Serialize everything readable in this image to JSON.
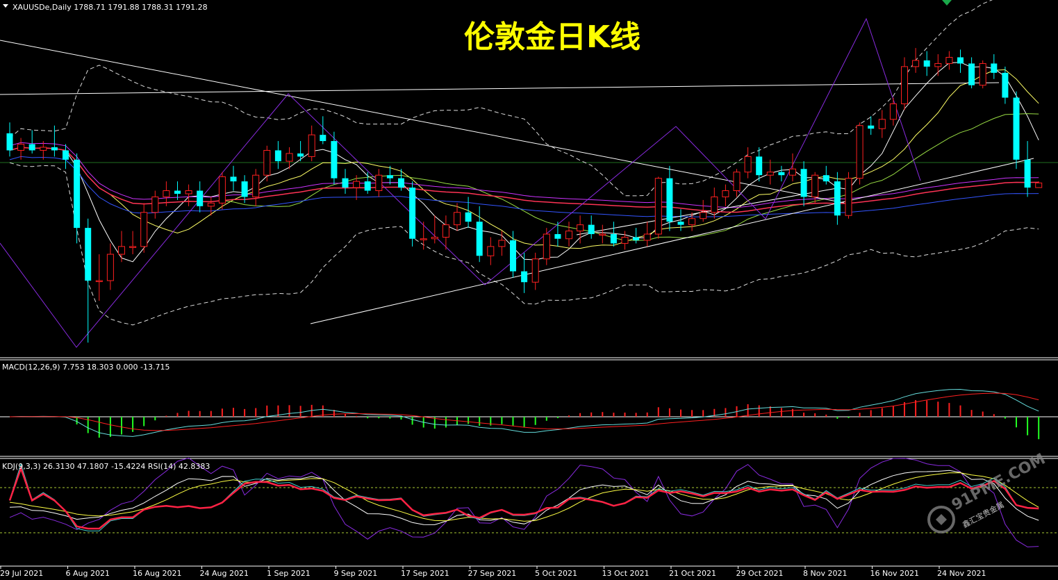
{
  "window": {
    "symbol_header": "XAUUSDe,Daily  1788.71 1791.88 1788.31 1791.28",
    "overlay_title": "伦敦金日K线"
  },
  "watermark": {
    "site": "91PME.COM",
    "tagline": "鑫汇宝贵金属"
  },
  "indicators": {
    "macd_header": "MACD(12,26,9) 7.753 18.303 0.000 -13.715",
    "kdj_header": "KDJ(9,3,3) 26.3130 47.1807 -15.4224  RSI(14) 42.8383"
  },
  "time_axis": {
    "labels": [
      "29 Jul 2021",
      "6 Aug 2021",
      "16 Aug 2021",
      "24 Aug 2021",
      "1 Sep 2021",
      "9 Sep 2021",
      "17 Sep 2021",
      "27 Sep 2021",
      "5 Oct 2021",
      "13 Oct 2021",
      "21 Oct 2021",
      "29 Oct 2021",
      "8 Nov 2021",
      "16 Nov 2021",
      "24 Nov 2021"
    ]
  },
  "colors": {
    "background": "#000000",
    "bull_candle": "#ff2020",
    "bear_candle": "#00ffff",
    "title": "#ffff00",
    "macd_positive": "#ff2020",
    "macd_negative": "#22ff22",
    "separator": "#ffffff"
  },
  "chart_data": {
    "type": "candlestick",
    "symbol": "XAUUSDe",
    "timeframe": "Daily",
    "candles": [
      {
        "o": 1823,
        "h": 1830,
        "l": 1808,
        "c": 1812
      },
      {
        "o": 1812,
        "h": 1820,
        "l": 1806,
        "c": 1816
      },
      {
        "o": 1816,
        "h": 1825,
        "l": 1810,
        "c": 1812
      },
      {
        "o": 1812,
        "h": 1818,
        "l": 1806,
        "c": 1814
      },
      {
        "o": 1814,
        "h": 1828,
        "l": 1808,
        "c": 1812
      },
      {
        "o": 1812,
        "h": 1816,
        "l": 1800,
        "c": 1806
      },
      {
        "o": 1806,
        "h": 1810,
        "l": 1752,
        "c": 1762
      },
      {
        "o": 1762,
        "h": 1768,
        "l": 1688,
        "c": 1728
      },
      {
        "o": 1728,
        "h": 1745,
        "l": 1715,
        "c": 1728
      },
      {
        "o": 1728,
        "h": 1752,
        "l": 1722,
        "c": 1745
      },
      {
        "o": 1745,
        "h": 1760,
        "l": 1740,
        "c": 1750
      },
      {
        "o": 1750,
        "h": 1760,
        "l": 1745,
        "c": 1750
      },
      {
        "o": 1750,
        "h": 1778,
        "l": 1746,
        "c": 1772
      },
      {
        "o": 1772,
        "h": 1786,
        "l": 1768,
        "c": 1782
      },
      {
        "o": 1782,
        "h": 1792,
        "l": 1776,
        "c": 1786
      },
      {
        "o": 1786,
        "h": 1792,
        "l": 1780,
        "c": 1784
      },
      {
        "o": 1784,
        "h": 1790,
        "l": 1776,
        "c": 1786
      },
      {
        "o": 1786,
        "h": 1792,
        "l": 1772,
        "c": 1776
      },
      {
        "o": 1776,
        "h": 1782,
        "l": 1770,
        "c": 1778
      },
      {
        "o": 1778,
        "h": 1798,
        "l": 1774,
        "c": 1795
      },
      {
        "o": 1795,
        "h": 1802,
        "l": 1786,
        "c": 1792
      },
      {
        "o": 1792,
        "h": 1796,
        "l": 1778,
        "c": 1782
      },
      {
        "o": 1782,
        "h": 1800,
        "l": 1776,
        "c": 1796
      },
      {
        "o": 1796,
        "h": 1815,
        "l": 1792,
        "c": 1812
      },
      {
        "o": 1812,
        "h": 1818,
        "l": 1800,
        "c": 1805
      },
      {
        "o": 1805,
        "h": 1814,
        "l": 1800,
        "c": 1810
      },
      {
        "o": 1810,
        "h": 1818,
        "l": 1805,
        "c": 1808
      },
      {
        "o": 1808,
        "h": 1828,
        "l": 1805,
        "c": 1822
      },
      {
        "o": 1822,
        "h": 1834,
        "l": 1816,
        "c": 1818
      },
      {
        "o": 1818,
        "h": 1824,
        "l": 1790,
        "c": 1794
      },
      {
        "o": 1794,
        "h": 1800,
        "l": 1784,
        "c": 1788
      },
      {
        "o": 1788,
        "h": 1796,
        "l": 1780,
        "c": 1792
      },
      {
        "o": 1792,
        "h": 1798,
        "l": 1784,
        "c": 1786
      },
      {
        "o": 1786,
        "h": 1800,
        "l": 1782,
        "c": 1796
      },
      {
        "o": 1796,
        "h": 1802,
        "l": 1790,
        "c": 1794
      },
      {
        "o": 1794,
        "h": 1800,
        "l": 1786,
        "c": 1788
      },
      {
        "o": 1788,
        "h": 1792,
        "l": 1750,
        "c": 1755
      },
      {
        "o": 1755,
        "h": 1766,
        "l": 1748,
        "c": 1755
      },
      {
        "o": 1755,
        "h": 1770,
        "l": 1752,
        "c": 1756
      },
      {
        "o": 1756,
        "h": 1770,
        "l": 1748,
        "c": 1764
      },
      {
        "o": 1764,
        "h": 1778,
        "l": 1760,
        "c": 1772
      },
      {
        "o": 1772,
        "h": 1782,
        "l": 1762,
        "c": 1766
      },
      {
        "o": 1766,
        "h": 1776,
        "l": 1740,
        "c": 1744
      },
      {
        "o": 1744,
        "h": 1756,
        "l": 1738,
        "c": 1750
      },
      {
        "o": 1750,
        "h": 1760,
        "l": 1744,
        "c": 1754
      },
      {
        "o": 1754,
        "h": 1760,
        "l": 1730,
        "c": 1734
      },
      {
        "o": 1734,
        "h": 1746,
        "l": 1720,
        "c": 1727
      },
      {
        "o": 1727,
        "h": 1746,
        "l": 1722,
        "c": 1742
      },
      {
        "o": 1742,
        "h": 1762,
        "l": 1738,
        "c": 1758
      },
      {
        "o": 1758,
        "h": 1766,
        "l": 1750,
        "c": 1755
      },
      {
        "o": 1755,
        "h": 1766,
        "l": 1750,
        "c": 1760
      },
      {
        "o": 1760,
        "h": 1770,
        "l": 1752,
        "c": 1764
      },
      {
        "o": 1764,
        "h": 1770,
        "l": 1755,
        "c": 1758
      },
      {
        "o": 1758,
        "h": 1764,
        "l": 1752,
        "c": 1758
      },
      {
        "o": 1758,
        "h": 1766,
        "l": 1750,
        "c": 1752
      },
      {
        "o": 1752,
        "h": 1760,
        "l": 1748,
        "c": 1756
      },
      {
        "o": 1756,
        "h": 1762,
        "l": 1752,
        "c": 1754
      },
      {
        "o": 1754,
        "h": 1766,
        "l": 1750,
        "c": 1758
      },
      {
        "o": 1758,
        "h": 1795,
        "l": 1755,
        "c": 1794
      },
      {
        "o": 1794,
        "h": 1802,
        "l": 1760,
        "c": 1766
      },
      {
        "o": 1766,
        "h": 1774,
        "l": 1760,
        "c": 1764
      },
      {
        "o": 1764,
        "h": 1772,
        "l": 1760,
        "c": 1768
      },
      {
        "o": 1768,
        "h": 1780,
        "l": 1766,
        "c": 1772
      },
      {
        "o": 1772,
        "h": 1788,
        "l": 1768,
        "c": 1782
      },
      {
        "o": 1782,
        "h": 1790,
        "l": 1776,
        "c": 1786
      },
      {
        "o": 1786,
        "h": 1800,
        "l": 1782,
        "c": 1798
      },
      {
        "o": 1798,
        "h": 1814,
        "l": 1794,
        "c": 1808
      },
      {
        "o": 1808,
        "h": 1814,
        "l": 1792,
        "c": 1796
      },
      {
        "o": 1796,
        "h": 1806,
        "l": 1790,
        "c": 1798
      },
      {
        "o": 1798,
        "h": 1802,
        "l": 1792,
        "c": 1796
      },
      {
        "o": 1796,
        "h": 1810,
        "l": 1792,
        "c": 1800
      },
      {
        "o": 1800,
        "h": 1805,
        "l": 1776,
        "c": 1782
      },
      {
        "o": 1782,
        "h": 1798,
        "l": 1778,
        "c": 1796
      },
      {
        "o": 1796,
        "h": 1802,
        "l": 1790,
        "c": 1792
      },
      {
        "o": 1792,
        "h": 1798,
        "l": 1764,
        "c": 1770
      },
      {
        "o": 1770,
        "h": 1798,
        "l": 1768,
        "c": 1794
      },
      {
        "o": 1794,
        "h": 1830,
        "l": 1790,
        "c": 1828
      },
      {
        "o": 1828,
        "h": 1834,
        "l": 1822,
        "c": 1826
      },
      {
        "o": 1826,
        "h": 1838,
        "l": 1820,
        "c": 1832
      },
      {
        "o": 1832,
        "h": 1846,
        "l": 1828,
        "c": 1842
      },
      {
        "o": 1842,
        "h": 1872,
        "l": 1838,
        "c": 1866
      },
      {
        "o": 1866,
        "h": 1878,
        "l": 1862,
        "c": 1870
      },
      {
        "o": 1870,
        "h": 1876,
        "l": 1860,
        "c": 1866
      },
      {
        "o": 1866,
        "h": 1874,
        "l": 1860,
        "c": 1868
      },
      {
        "o": 1868,
        "h": 1876,
        "l": 1864,
        "c": 1872
      },
      {
        "o": 1872,
        "h": 1877,
        "l": 1862,
        "c": 1868
      },
      {
        "o": 1868,
        "h": 1872,
        "l": 1852,
        "c": 1854
      },
      {
        "o": 1854,
        "h": 1870,
        "l": 1852,
        "c": 1868
      },
      {
        "o": 1868,
        "h": 1874,
        "l": 1858,
        "c": 1862
      },
      {
        "o": 1862,
        "h": 1866,
        "l": 1842,
        "c": 1846
      },
      {
        "o": 1846,
        "h": 1850,
        "l": 1800,
        "c": 1806
      },
      {
        "o": 1806,
        "h": 1818,
        "l": 1782,
        "c": 1788
      },
      {
        "o": 1788,
        "h": 1792,
        "l": 1788,
        "c": 1791
      }
    ]
  }
}
